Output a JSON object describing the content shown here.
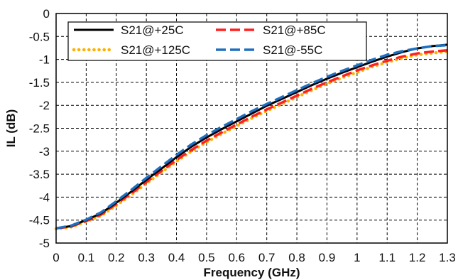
{
  "chart_data": {
    "type": "line",
    "xlabel": "Frequency (GHz)",
    "ylabel": "IL (dB)",
    "xlim": [
      0,
      1.3
    ],
    "ylim": [
      -5,
      0
    ],
    "x_ticks": [
      "0",
      "0.1",
      "0.2",
      "0.3",
      "0.4",
      "0.5",
      "0.6",
      "0.7",
      "0.8",
      "0.9",
      "1",
      "1.1",
      "1.2",
      "1.3"
    ],
    "y_ticks": [
      "0",
      "-0.5",
      "-1",
      "-1.5",
      "-2",
      "-2.5",
      "-3",
      "-3.5",
      "-4",
      "-4.5",
      "-5"
    ],
    "grid": "dashed",
    "legend_position": "top-left",
    "x": [
      0,
      0.05,
      0.1,
      0.15,
      0.2,
      0.25,
      0.3,
      0.35,
      0.4,
      0.45,
      0.5,
      0.55,
      0.6,
      0.65,
      0.7,
      0.75,
      0.8,
      0.85,
      0.9,
      0.95,
      1.0,
      1.05,
      1.1,
      1.15,
      1.2,
      1.25,
      1.3
    ],
    "series": [
      {
        "name": "S21@+25C",
        "color": "#000000",
        "style": "solid",
        "values": [
          -4.68,
          -4.63,
          -4.5,
          -4.35,
          -4.12,
          -3.88,
          -3.62,
          -3.38,
          -3.13,
          -2.9,
          -2.7,
          -2.52,
          -2.35,
          -2.18,
          -2.01,
          -1.86,
          -1.71,
          -1.56,
          -1.42,
          -1.29,
          -1.17,
          -1.05,
          -0.94,
          -0.84,
          -0.76,
          -0.71,
          -0.68
        ]
      },
      {
        "name": "S21@+85C",
        "color": "#ff2020",
        "style": "dashed",
        "values": [
          -4.68,
          -4.64,
          -4.52,
          -4.38,
          -4.15,
          -3.92,
          -3.67,
          -3.43,
          -3.19,
          -2.97,
          -2.77,
          -2.59,
          -2.42,
          -2.25,
          -2.09,
          -1.94,
          -1.79,
          -1.64,
          -1.5,
          -1.37,
          -1.24,
          -1.13,
          -1.03,
          -0.94,
          -0.87,
          -0.83,
          -0.8
        ]
      },
      {
        "name": "S21@+125C",
        "color": "#ffb000",
        "style": "dotted",
        "values": [
          -4.69,
          -4.65,
          -4.53,
          -4.4,
          -4.18,
          -3.95,
          -3.7,
          -3.46,
          -3.22,
          -3.0,
          -2.8,
          -2.62,
          -2.45,
          -2.28,
          -2.12,
          -1.97,
          -1.82,
          -1.67,
          -1.53,
          -1.4,
          -1.28,
          -1.16,
          -1.06,
          -0.97,
          -0.9,
          -0.86,
          -0.83
        ]
      },
      {
        "name": "S21@-55C",
        "color": "#1f6fbf",
        "style": "dashed",
        "values": [
          -4.68,
          -4.62,
          -4.49,
          -4.33,
          -4.09,
          -3.84,
          -3.58,
          -3.33,
          -3.08,
          -2.85,
          -2.65,
          -2.47,
          -2.3,
          -2.13,
          -1.97,
          -1.82,
          -1.67,
          -1.52,
          -1.38,
          -1.25,
          -1.13,
          -1.01,
          -0.9,
          -0.82,
          -0.76,
          -0.71,
          -0.69
        ]
      }
    ]
  }
}
